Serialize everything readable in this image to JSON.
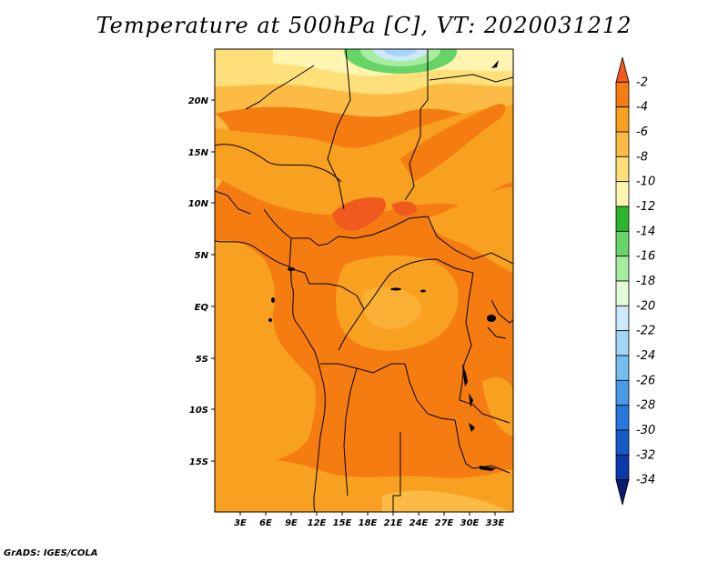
{
  "title": "Temperature at 500hPa [C], VT: 2020031212",
  "credit": "GrADS: IGES/COLA",
  "map": {
    "variable": "Temperature at 500hPa",
    "units": "C",
    "valid_time": "2020031212",
    "lat_ticks": [
      "20N",
      "15N",
      "10N",
      "5N",
      "EQ",
      "5S",
      "10S",
      "15S"
    ],
    "lon_ticks": [
      "3E",
      "6E",
      "9E",
      "12E",
      "15E",
      "18E",
      "21E",
      "24E",
      "27E",
      "30E",
      "33E"
    ]
  },
  "colorbar": {
    "labels": [
      "-2",
      "-4",
      "-6",
      "-8",
      "-10",
      "-12",
      "-14",
      "-16",
      "-18",
      "-20",
      "-22",
      "-24",
      "-26",
      "-28",
      "-30",
      "-32",
      "-34"
    ],
    "colors": [
      "#f05a1e",
      "#f57c10",
      "#f8a020",
      "#fbbb45",
      "#fde07a",
      "#fff5b0",
      "#2db52d",
      "#66d466",
      "#a8eca0",
      "#e2fad8",
      "#cce9fb",
      "#a4d4f6",
      "#78bdf0",
      "#4a9ae6",
      "#2878dc",
      "#155ac8",
      "#0a3aa8",
      "#0a1a6e"
    ]
  }
}
